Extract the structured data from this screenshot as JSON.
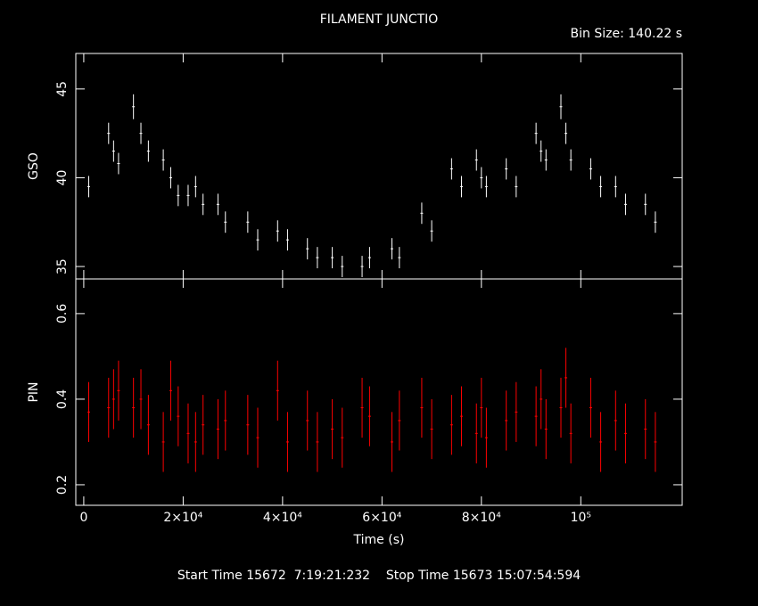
{
  "chart_data": [
    {
      "type": "errorbar",
      "title": "FILAMENT JUNCTIO",
      "annotation": "Bin Size: 140.22 s",
      "ylabel": "GSO",
      "x": [
        1000,
        5000,
        6000,
        7000,
        10000,
        11500,
        13000,
        16000,
        17500,
        19000,
        21000,
        22500,
        24000,
        27000,
        28500,
        33000,
        35000,
        39000,
        41000,
        45000,
        47000,
        50000,
        52000,
        56000,
        57500,
        62000,
        63500,
        68000,
        70000,
        74000,
        76000,
        79000,
        80000,
        81000,
        85000,
        87000,
        91000,
        92000,
        93000,
        96000,
        97000,
        98000,
        102000,
        104000,
        107000,
        109000,
        113000,
        115000
      ],
      "series": [
        {
          "name": "GSO",
          "color": "#ffffff",
          "values": [
            39.5,
            42.5,
            41.5,
            40.8,
            44,
            42.5,
            41.5,
            41,
            40,
            39,
            39,
            39.5,
            38.5,
            38.5,
            37.5,
            37.5,
            36.5,
            37,
            36.5,
            36,
            35.5,
            35.5,
            35,
            35,
            35.5,
            36,
            35.5,
            38,
            37,
            40.5,
            39.5,
            41,
            40,
            39.5,
            40.5,
            39.5,
            42.5,
            41.5,
            41,
            44,
            42.5,
            41,
            40.5,
            39.5,
            39.5,
            38.5,
            38.5,
            37.5
          ],
          "errors": [
            0.6,
            0.6,
            0.6,
            0.6,
            0.7,
            0.6,
            0.6,
            0.6,
            0.6,
            0.6,
            0.6,
            0.6,
            0.6,
            0.6,
            0.6,
            0.6,
            0.6,
            0.6,
            0.6,
            0.6,
            0.6,
            0.6,
            0.6,
            0.6,
            0.6,
            0.6,
            0.6,
            0.6,
            0.6,
            0.6,
            0.6,
            0.6,
            0.6,
            0.6,
            0.6,
            0.6,
            0.6,
            0.6,
            0.6,
            0.7,
            0.6,
            0.6,
            0.6,
            0.6,
            0.6,
            0.6,
            0.6,
            0.6
          ]
        }
      ],
      "xlim": [
        -1600,
        120400
      ],
      "ylim": [
        34.3,
        47
      ],
      "yticks": [
        35,
        40,
        45
      ]
    },
    {
      "type": "errorbar",
      "ylabel": "PIN",
      "xlabel": "Time (s)",
      "x": [
        1000,
        5000,
        6000,
        7000,
        10000,
        11500,
        13000,
        16000,
        17500,
        19000,
        21000,
        22500,
        24000,
        27000,
        28500,
        33000,
        35000,
        39000,
        41000,
        45000,
        47000,
        50000,
        52000,
        56000,
        57500,
        62000,
        63500,
        68000,
        70000,
        74000,
        76000,
        79000,
        80000,
        81000,
        85000,
        87000,
        91000,
        92000,
        93000,
        96000,
        97000,
        98000,
        102000,
        104000,
        107000,
        109000,
        113000,
        115000
      ],
      "series": [
        {
          "name": "PIN",
          "color": "#ff0000",
          "values": [
            0.37,
            0.38,
            0.4,
            0.42,
            0.38,
            0.4,
            0.34,
            0.3,
            0.42,
            0.36,
            0.32,
            0.3,
            0.34,
            0.33,
            0.35,
            0.34,
            0.31,
            0.42,
            0.3,
            0.35,
            0.3,
            0.33,
            0.31,
            0.38,
            0.36,
            0.3,
            0.35,
            0.38,
            0.33,
            0.34,
            0.36,
            0.32,
            0.38,
            0.31,
            0.35,
            0.37,
            0.36,
            0.4,
            0.33,
            0.38,
            0.45,
            0.32,
            0.38,
            0.3,
            0.35,
            0.32,
            0.33,
            0.3
          ],
          "errors": [
            0.07,
            0.07,
            0.07,
            0.07,
            0.07,
            0.07,
            0.07,
            0.07,
            0.07,
            0.07,
            0.07,
            0.07,
            0.07,
            0.07,
            0.07,
            0.07,
            0.07,
            0.07,
            0.07,
            0.07,
            0.07,
            0.07,
            0.07,
            0.07,
            0.07,
            0.07,
            0.07,
            0.07,
            0.07,
            0.07,
            0.07,
            0.07,
            0.07,
            0.07,
            0.07,
            0.07,
            0.07,
            0.07,
            0.07,
            0.07,
            0.07,
            0.07,
            0.07,
            0.07,
            0.07,
            0.07,
            0.07,
            0.07
          ]
        }
      ],
      "xlim": [
        -1600,
        120400
      ],
      "ylim": [
        0.152,
        0.681
      ],
      "yticks": [
        0.2,
        0.4,
        0.6
      ],
      "xticks": [
        0,
        {
          "value": 20000,
          "label": "2×10⁴"
        },
        {
          "value": 40000,
          "label": "4×10⁴"
        },
        {
          "value": 60000,
          "label": "6×10⁴"
        },
        {
          "value": 80000,
          "label": "8×10⁴"
        },
        {
          "value": 100000,
          "label": "10⁵"
        }
      ]
    }
  ],
  "footer": "Start Time 15672  7:19:21:232    Stop Time 15673 15:07:54:594"
}
